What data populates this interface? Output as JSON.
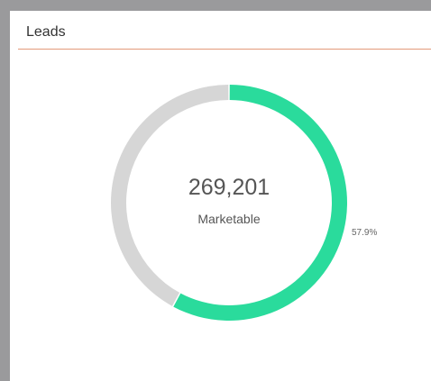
{
  "panel": {
    "title": "Leads"
  },
  "chart_data": {
    "type": "pie",
    "title": "",
    "center_value": "269,201",
    "center_label": "Marketable",
    "slices": [
      {
        "name": "",
        "value": 57.9,
        "color": "#2adb9c",
        "label": "57.9%"
      },
      {
        "name": "",
        "value": 42.1,
        "color": "#d6d6d6",
        "label": ""
      }
    ]
  }
}
